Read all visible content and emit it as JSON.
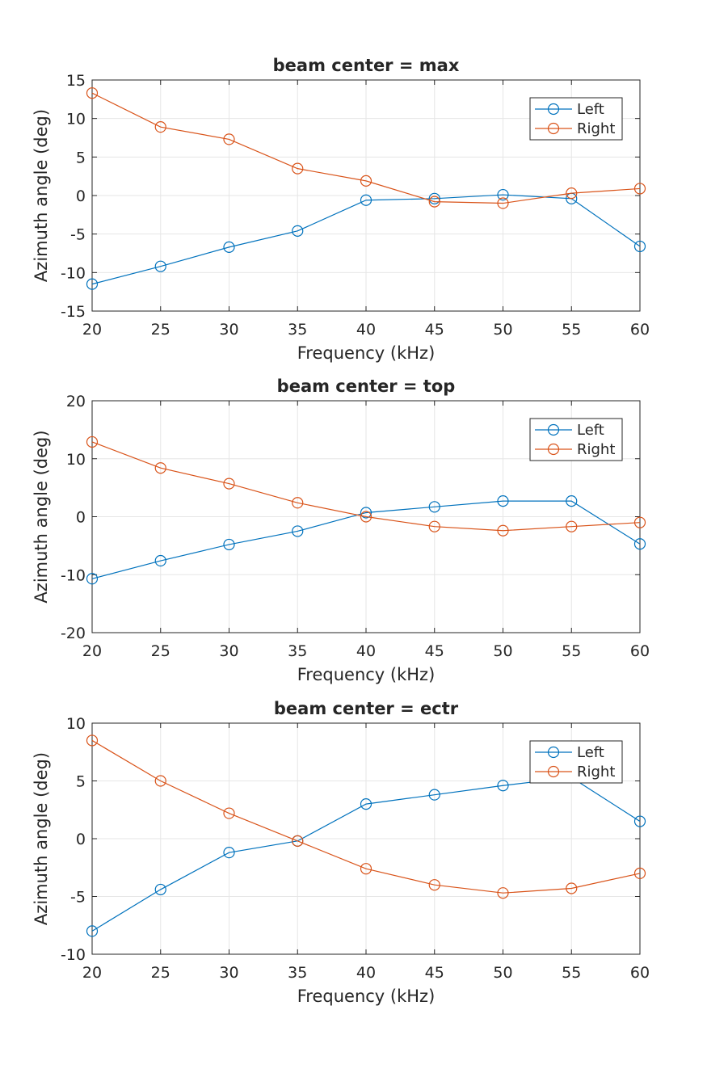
{
  "colors": {
    "left": "#0072BD",
    "right": "#D95319",
    "grid": "#e6e6e6",
    "axis": "#262626"
  },
  "chart_data": [
    {
      "type": "line",
      "title": "beam center = max",
      "xlabel": "Frequency (kHz)",
      "ylabel": "Azimuth angle (deg)",
      "x": [
        20,
        25,
        30,
        35,
        40,
        45,
        50,
        55,
        60
      ],
      "xlim": [
        20,
        60
      ],
      "ylim": [
        -15,
        15
      ],
      "xticks": [
        20,
        25,
        30,
        35,
        40,
        45,
        50,
        55,
        60
      ],
      "yticks": [
        -15,
        -10,
        -5,
        0,
        5,
        10,
        15
      ],
      "grid": true,
      "legend_position": "top-right",
      "series": [
        {
          "name": "Left",
          "color": "#0072BD",
          "values": [
            -11.5,
            -9.2,
            -6.7,
            -4.6,
            -0.6,
            -0.4,
            0.1,
            -0.4,
            -6.6
          ]
        },
        {
          "name": "Right",
          "color": "#D95319",
          "values": [
            13.3,
            8.9,
            7.3,
            3.5,
            1.9,
            -0.8,
            -1.0,
            0.3,
            0.9
          ]
        }
      ]
    },
    {
      "type": "line",
      "title": "beam center = top",
      "xlabel": "Frequency (kHz)",
      "ylabel": "Azimuth angle (deg)",
      "x": [
        20,
        25,
        30,
        35,
        40,
        45,
        50,
        55,
        60
      ],
      "xlim": [
        20,
        60
      ],
      "ylim": [
        -20,
        20
      ],
      "xticks": [
        20,
        25,
        30,
        35,
        40,
        45,
        50,
        55,
        60
      ],
      "yticks": [
        -20,
        -10,
        0,
        10,
        20
      ],
      "grid": true,
      "legend_position": "top-right",
      "series": [
        {
          "name": "Left",
          "color": "#0072BD",
          "values": [
            -10.7,
            -7.6,
            -4.8,
            -2.5,
            0.7,
            1.7,
            2.7,
            2.7,
            -4.7
          ]
        },
        {
          "name": "Right",
          "color": "#D95319",
          "values": [
            12.9,
            8.4,
            5.7,
            2.4,
            0.0,
            -1.7,
            -2.4,
            -1.7,
            -1.0
          ]
        }
      ]
    },
    {
      "type": "line",
      "title": "beam center = ectr",
      "xlabel": "Frequency (kHz)",
      "ylabel": "Azimuth angle (deg)",
      "x": [
        20,
        25,
        30,
        35,
        40,
        45,
        50,
        55,
        60
      ],
      "xlim": [
        20,
        60
      ],
      "ylim": [
        -10,
        10
      ],
      "xticks": [
        20,
        25,
        30,
        35,
        40,
        45,
        50,
        55,
        60
      ],
      "yticks": [
        -10,
        -5,
        0,
        5,
        10
      ],
      "grid": true,
      "legend_position": "top-right",
      "series": [
        {
          "name": "Left",
          "color": "#0072BD",
          "values": [
            -8.0,
            -4.4,
            -1.2,
            -0.2,
            3.0,
            3.8,
            4.6,
            5.3,
            1.5
          ]
        },
        {
          "name": "Right",
          "color": "#D95319",
          "values": [
            8.5,
            5.0,
            2.2,
            -0.2,
            -2.6,
            -4.0,
            -4.7,
            -4.3,
            -3.0
          ]
        }
      ]
    }
  ]
}
